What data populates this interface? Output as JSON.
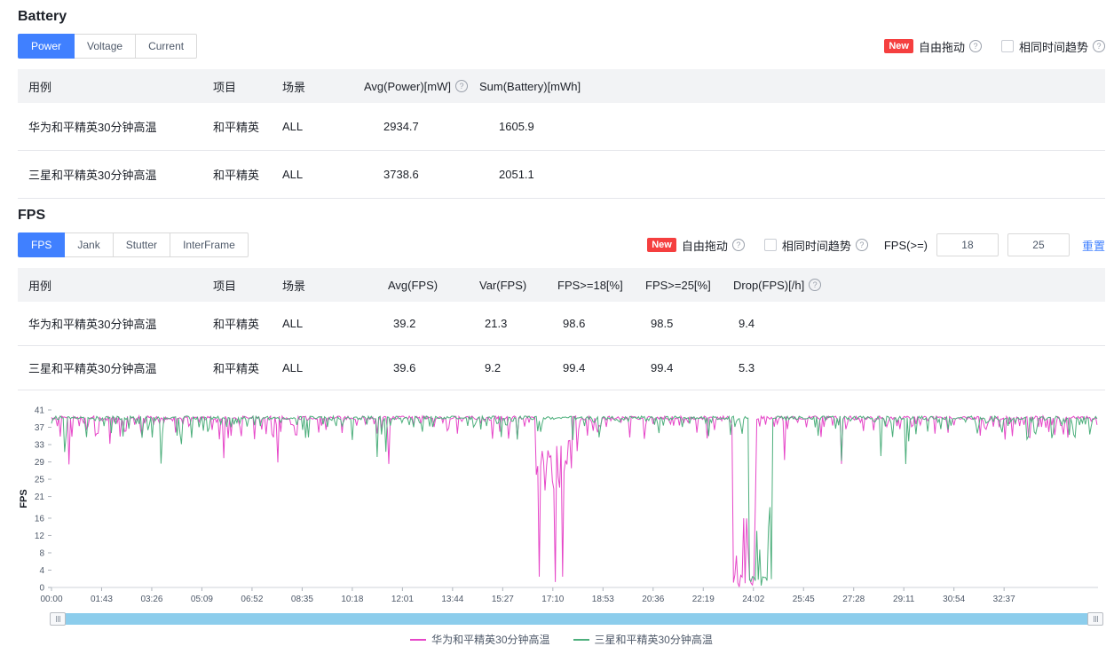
{
  "battery": {
    "title": "Battery",
    "tabs": [
      {
        "label": "Power",
        "active": true
      },
      {
        "label": "Voltage",
        "active": false
      },
      {
        "label": "Current",
        "active": false
      }
    ],
    "controls": {
      "new_badge": "New",
      "free_drag_label": "自由拖动",
      "same_time_label": "相同时间趋势"
    },
    "table": {
      "headers": [
        "用例",
        "项目",
        "场景",
        "Avg(Power)[mW]",
        "Sum(Battery)[mWh]"
      ],
      "rows": [
        [
          "华为和平精英30分钟高温",
          "和平精英",
          "ALL",
          "2934.7",
          "1605.9"
        ],
        [
          "三星和平精英30分钟高温",
          "和平精英",
          "ALL",
          "3738.6",
          "2051.1"
        ]
      ]
    }
  },
  "fps": {
    "title": "FPS",
    "tabs": [
      {
        "label": "FPS",
        "active": true
      },
      {
        "label": "Jank",
        "active": false
      },
      {
        "label": "Stutter",
        "active": false
      },
      {
        "label": "InterFrame",
        "active": false
      }
    ],
    "controls": {
      "new_badge": "New",
      "free_drag_label": "自由拖动",
      "same_time_label": "相同时间趋势",
      "fps_threshold_label": "FPS(>=)",
      "threshold1": "18",
      "threshold2": "25",
      "reset_label": "重置"
    },
    "table": {
      "headers": [
        "用例",
        "项目",
        "场景",
        "Avg(FPS)",
        "Var(FPS)",
        "FPS>=18[%]",
        "FPS>=25[%]",
        "Drop(FPS)[/h]"
      ],
      "rows": [
        [
          "华为和平精英30分钟高温",
          "和平精英",
          "ALL",
          "39.2",
          "21.3",
          "98.6",
          "98.5",
          "9.4"
        ],
        [
          "三星和平精英30分钟高温",
          "和平精英",
          "ALL",
          "39.6",
          "9.2",
          "99.4",
          "99.4",
          "5.3"
        ]
      ]
    }
  },
  "chart_data": {
    "type": "line",
    "title": "",
    "ylabel": "FPS",
    "ylim": [
      0,
      41
    ],
    "y_ticks": [
      0,
      4,
      8,
      12,
      16,
      21,
      25,
      29,
      33,
      37,
      41
    ],
    "x_ticks": [
      "00:00",
      "01:43",
      "03:26",
      "05:09",
      "06:52",
      "08:35",
      "10:18",
      "12:01",
      "13:44",
      "15:27",
      "17:10",
      "18:53",
      "20:36",
      "22:19",
      "24:02",
      "25:45",
      "27:28",
      "29:11",
      "30:54",
      "32:37"
    ],
    "x_tick_interval_s": 103,
    "x_max_s": 2150,
    "grid": false,
    "legend_position": "bottom",
    "series": [
      {
        "name": "华为和平精英30分钟高温",
        "color": "#e646c8",
        "baseline": 40,
        "seed": 7,
        "avg": 39.2,
        "dips": [
          {
            "start": 995,
            "end": 1070,
            "typ": 27,
            "min": 0,
            "zr": 0.15
          },
          {
            "start": 1400,
            "end": 1446,
            "typ": 12,
            "min": 0,
            "zr": 0.5
          }
        ]
      },
      {
        "name": "三星和平精英30分钟高温",
        "color": "#4daf7c",
        "baseline": 40,
        "seed": 13,
        "avg": 39.6,
        "dips": [
          {
            "start": 1432,
            "end": 1480,
            "typ": 13,
            "min": 0,
            "zr": 0.45
          }
        ]
      }
    ]
  }
}
